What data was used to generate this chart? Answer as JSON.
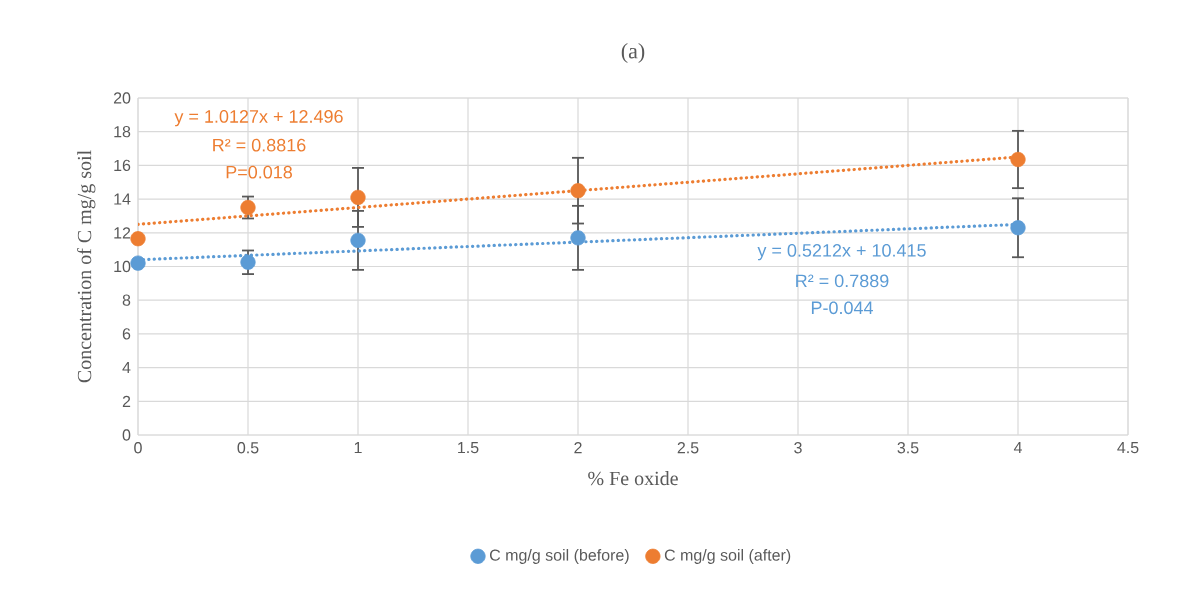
{
  "chart_data": {
    "type": "scatter",
    "title": "(a)",
    "xlabel": "% Fe oxide",
    "ylabel": "Concentration of C mg/g soil",
    "xlim": [
      0,
      4.5
    ],
    "xticks": [
      0,
      0.5,
      1,
      1.5,
      2,
      2.5,
      3,
      3.5,
      4,
      4.5
    ],
    "ylim": [
      0,
      20
    ],
    "yticks": [
      0,
      2,
      4,
      6,
      8,
      10,
      12,
      14,
      16,
      18,
      20
    ],
    "grid": true,
    "legend": "bottom",
    "marker": "circle",
    "series": [
      {
        "name": "C mg/g soil (before)",
        "color": "#5b9bd5",
        "x": [
          0,
          0.5,
          1,
          2,
          4
        ],
        "values": [
          10.2,
          10.25,
          11.55,
          11.7,
          12.3
        ],
        "errors": [
          null,
          0.7,
          1.75,
          1.9,
          1.75
        ]
      },
      {
        "name": "C mg/g soil (after)",
        "color": "#ed7d31",
        "x": [
          0,
          0.5,
          1,
          2,
          4
        ],
        "values": [
          11.65,
          13.5,
          14.1,
          14.5,
          16.35
        ],
        "errors": [
          null,
          0.65,
          1.75,
          1.95,
          1.7
        ]
      },
      {
        "type": "line",
        "color": "#5b9bd5",
        "line_style": "dotted",
        "marker": "none",
        "x": [
          0,
          4
        ],
        "values": [
          10.4,
          12.5
        ]
      },
      {
        "type": "line",
        "color": "#ed7d31",
        "line_style": "dotted",
        "marker": "none",
        "x": [
          0,
          4
        ],
        "values": [
          12.5,
          16.5
        ]
      }
    ],
    "annotations": [
      "y = 1.0127x + 12.496",
      "R² = 0.8816",
      "P=0.018",
      "y = 0.5212x + 10.415",
      "R² = 0.7889",
      "P-0.044"
    ]
  }
}
